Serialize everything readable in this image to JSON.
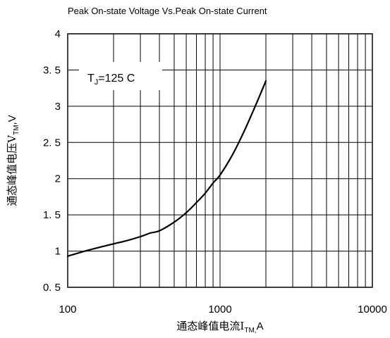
{
  "chart_data": {
    "type": "line",
    "title": "Peak On-state Voltage Vs.Peak On-state Current",
    "xlabel": {
      "main": "通态峰值电流I",
      "sub": "TM,",
      "tail": "A"
    },
    "ylabel": {
      "main": "通态峰值电压V",
      "sub": "TM",
      "tail": ",V"
    },
    "annotation": {
      "main": "T",
      "sub": "J",
      "tail": "=125  C"
    },
    "x_scale": "log",
    "xlim": [
      100,
      10000
    ],
    "ylim": [
      0.5,
      4
    ],
    "x_tick_labels": [
      "100",
      "1000",
      "10000"
    ],
    "y_tick_labels": [
      "0. 5",
      "1",
      "1. 5",
      "2",
      "2. 5",
      "3",
      "3. 5",
      "4"
    ],
    "grid": true,
    "series": [
      {
        "x": [
          100,
          130,
          160,
          200,
          250,
          300,
          350,
          400,
          500,
          600,
          700,
          800,
          900,
          1000,
          1200,
          1400,
          1600,
          1800,
          2000
        ],
        "y": [
          0.93,
          1.0,
          1.05,
          1.1,
          1.15,
          1.2,
          1.25,
          1.28,
          1.4,
          1.53,
          1.67,
          1.8,
          1.94,
          2.05,
          2.32,
          2.6,
          2.87,
          3.12,
          3.35
        ]
      }
    ]
  }
}
